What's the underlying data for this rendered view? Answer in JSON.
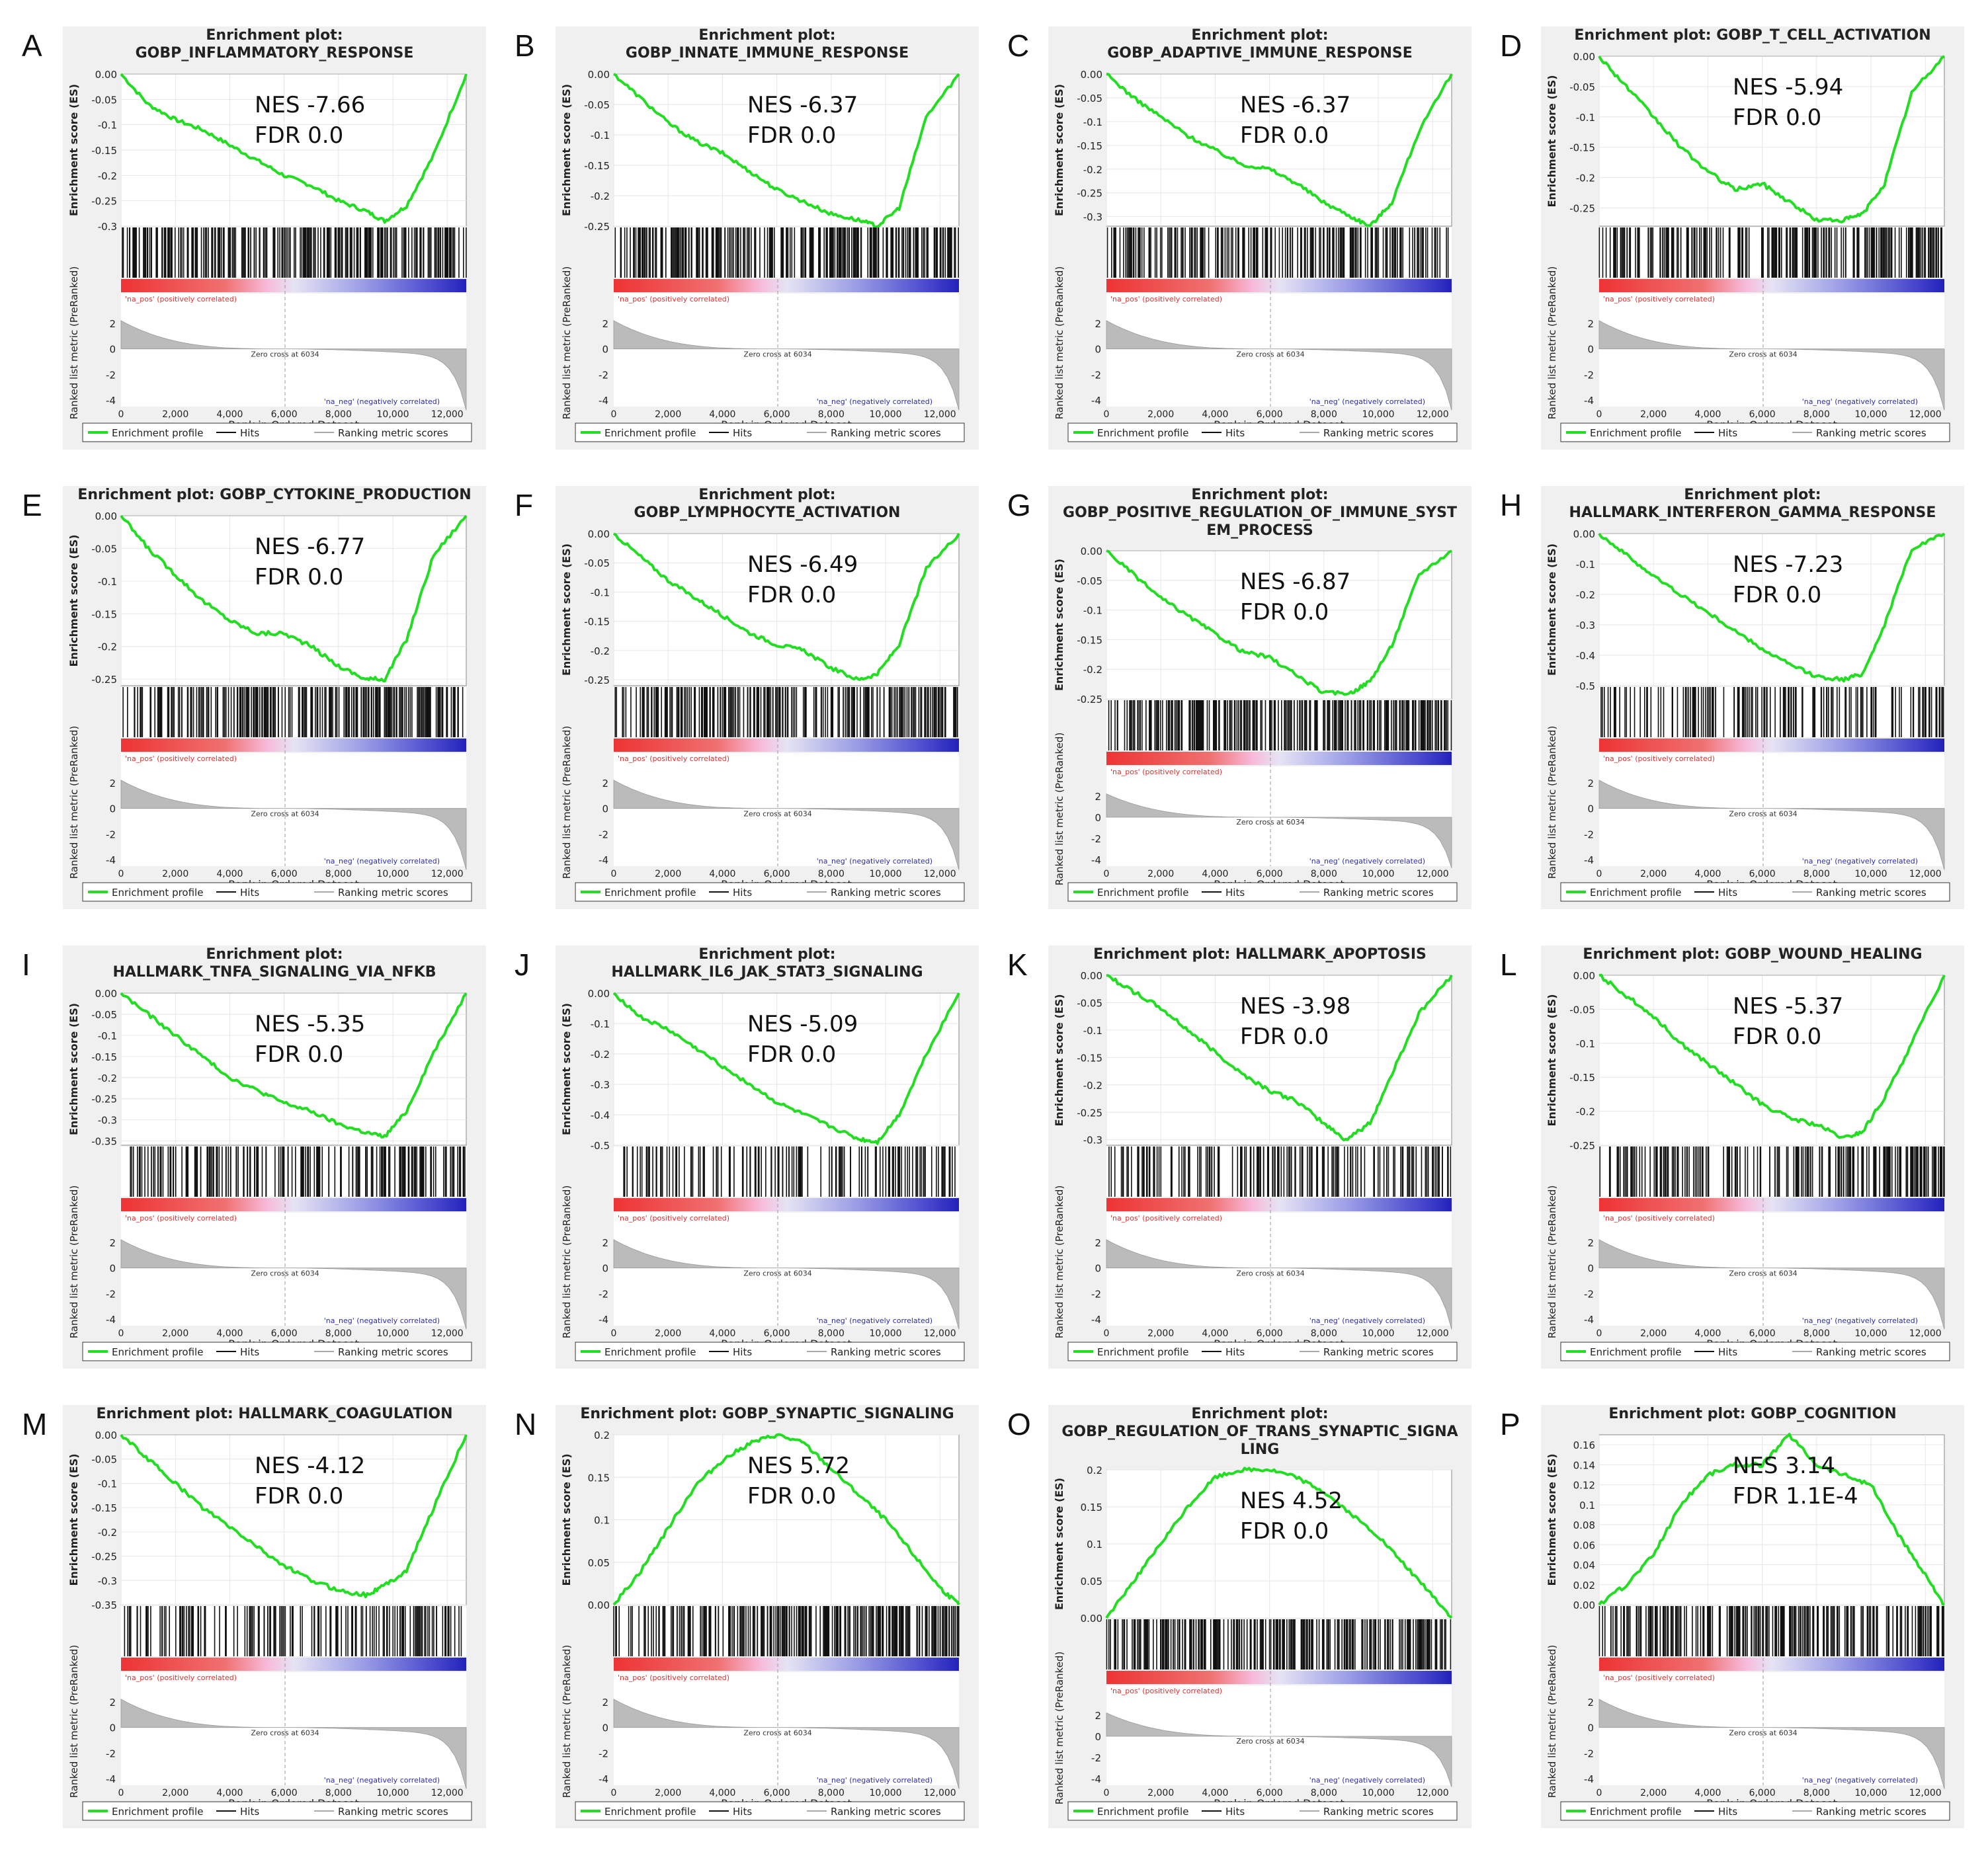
{
  "figure": {
    "panels": [
      {
        "letter": "A",
        "title_lines": [
          "Enrichment plot:",
          "GOBP_INFLAMMATORY_RESPONSE"
        ],
        "nes": "NES -7.66",
        "fdr": "FDR 0.0"
      },
      {
        "letter": "B",
        "title_lines": [
          "Enrichment plot:",
          "GOBP_INNATE_IMMUNE_RESPONSE"
        ],
        "nes": "NES -6.37",
        "fdr": "FDR 0.0"
      },
      {
        "letter": "C",
        "title_lines": [
          "Enrichment plot:",
          "GOBP_ADAPTIVE_IMMUNE_RESPONSE"
        ],
        "nes": "NES -6.37",
        "fdr": "FDR 0.0"
      },
      {
        "letter": "D",
        "title_lines": [
          "Enrichment plot: GOBP_T_CELL_ACTIVATION"
        ],
        "nes": "NES -5.94",
        "fdr": "FDR 0.0"
      },
      {
        "letter": "E",
        "title_lines": [
          "Enrichment plot: GOBP_CYTOKINE_PRODUCTION"
        ],
        "nes": "NES -6.77",
        "fdr": "FDR 0.0"
      },
      {
        "letter": "F",
        "title_lines": [
          "Enrichment plot:",
          "GOBP_LYMPHOCYTE_ACTIVATION"
        ],
        "nes": "NES -6.49",
        "fdr": "FDR 0.0"
      },
      {
        "letter": "G",
        "title_lines": [
          "Enrichment plot:",
          "GOBP_POSITIVE_REGULATION_OF_IMMUNE_SYST",
          "EM_PROCESS"
        ],
        "nes": "NES -6.87",
        "fdr": "FDR 0.0"
      },
      {
        "letter": "H",
        "title_lines": [
          "Enrichment plot:",
          "HALLMARK_INTERFERON_GAMMA_RESPONSE"
        ],
        "nes": "NES -7.23",
        "fdr": "FDR 0.0"
      },
      {
        "letter": "I",
        "title_lines": [
          "Enrichment plot:",
          "HALLMARK_TNFA_SIGNALING_VIA_NFKB"
        ],
        "nes": "NES -5.35",
        "fdr": "FDR 0.0"
      },
      {
        "letter": "J",
        "title_lines": [
          "Enrichment plot:",
          "HALLMARK_IL6_JAK_STAT3_SIGNALING"
        ],
        "nes": "NES -5.09",
        "fdr": "FDR 0.0"
      },
      {
        "letter": "K",
        "title_lines": [
          "Enrichment plot: HALLMARK_APOPTOSIS"
        ],
        "nes": "NES -3.98",
        "fdr": "FDR 0.0"
      },
      {
        "letter": "L",
        "title_lines": [
          "Enrichment plot: GOBP_WOUND_HEALING"
        ],
        "nes": "NES -5.37",
        "fdr": "FDR 0.0"
      },
      {
        "letter": "M",
        "title_lines": [
          "Enrichment plot: HALLMARK_COAGULATION"
        ],
        "nes": "NES -4.12",
        "fdr": "FDR 0.0"
      },
      {
        "letter": "N",
        "title_lines": [
          "Enrichment plot: GOBP_SYNAPTIC_SIGNALING"
        ],
        "nes": "NES 5.72",
        "fdr": "FDR 0.0"
      },
      {
        "letter": "O",
        "title_lines": [
          "Enrichment plot:",
          "GOBP_REGULATION_OF_TRANS_SYNAPTIC_SIGNA",
          "LING"
        ],
        "nes": "NES 4.52",
        "fdr": "FDR 0.0"
      },
      {
        "letter": "P",
        "title_lines": [
          "Enrichment plot: GOBP_COGNITION"
        ],
        "nes": "NES 3.14",
        "fdr": "FDR 1.1E-4"
      }
    ],
    "common_labels": {
      "es_ylabel": "Enrichment score (ES)",
      "metric_ylabel": "Ranked list metric (PreRanked)",
      "xlabel": "Rank in Ordered Dataset",
      "pos_label": "'na_pos' (positively correlated)",
      "neg_label": "'na_neg' (negatively correlated)",
      "zero_cross": "Zero cross at 6034",
      "legend_profile": "Enrichment profile",
      "legend_hits": "Hits",
      "legend_ranking": "Ranking metric scores"
    },
    "colors": {
      "profile": "#22dd22",
      "pos": "#ee3333",
      "neg": "#2222bb",
      "panel_bg": "#f0f0f0",
      "metric_fill": "#bbbbbb"
    }
  },
  "chart_data": [
    {
      "type": "line",
      "panel": "A",
      "title": "Enrichment plot: GOBP_INFLAMMATORY_RESPONSE",
      "ylabel": "Enrichment score (ES)",
      "xlabel": "Rank in Ordered Dataset",
      "x": [
        0,
        1000,
        2000,
        3000,
        4000,
        5000,
        6000,
        7000,
        8000,
        9000,
        9700,
        10500,
        11500,
        12700
      ],
      "y": [
        0,
        -0.06,
        -0.09,
        -0.11,
        -0.14,
        -0.17,
        -0.2,
        -0.22,
        -0.25,
        -0.27,
        -0.29,
        -0.26,
        -0.16,
        0
      ],
      "ylim": [
        -0.3,
        0
      ],
      "yticks": [
        0,
        -0.05,
        -0.1,
        -0.15,
        -0.2,
        -0.25,
        -0.3
      ],
      "xticks": [
        0,
        2000,
        4000,
        6000,
        8000,
        10000,
        12000
      ],
      "hit_density": 0.85
    },
    {
      "type": "line",
      "panel": "B",
      "title": "Enrichment plot: GOBP_INNATE_IMMUNE_RESPONSE",
      "ylabel": "Enrichment score (ES)",
      "xlabel": "Rank in Ordered Dataset",
      "x": [
        0,
        1000,
        2000,
        3000,
        4000,
        5000,
        6000,
        7000,
        8000,
        9000,
        9700,
        10500,
        11500,
        12700
      ],
      "y": [
        0,
        -0.04,
        -0.08,
        -0.11,
        -0.13,
        -0.16,
        -0.19,
        -0.21,
        -0.23,
        -0.24,
        -0.25,
        -0.22,
        -0.07,
        0
      ],
      "ylim": [
        -0.25,
        0
      ],
      "yticks": [
        0,
        -0.05,
        -0.1,
        -0.15,
        -0.2,
        -0.25
      ],
      "xticks": [
        0,
        2000,
        4000,
        6000,
        8000,
        10000,
        12000
      ],
      "hit_density": 0.9
    },
    {
      "type": "line",
      "panel": "C",
      "title": "Enrichment plot: GOBP_ADAPTIVE_IMMUNE_RESPONSE",
      "ylabel": "Enrichment score (ES)",
      "xlabel": "Rank in Ordered Dataset",
      "x": [
        0,
        1000,
        2000,
        3000,
        4000,
        5000,
        6000,
        7000,
        8000,
        9000,
        9700,
        10500,
        11500,
        12700
      ],
      "y": [
        0,
        -0.05,
        -0.09,
        -0.13,
        -0.16,
        -0.19,
        -0.2,
        -0.23,
        -0.27,
        -0.3,
        -0.32,
        -0.27,
        -0.12,
        0
      ],
      "ylim": [
        -0.32,
        0
      ],
      "yticks": [
        0,
        -0.05,
        -0.1,
        -0.15,
        -0.2,
        -0.25,
        -0.3
      ],
      "xticks": [
        0,
        2000,
        4000,
        6000,
        8000,
        10000,
        12000
      ],
      "hit_density": 0.6
    },
    {
      "type": "line",
      "panel": "D",
      "title": "Enrichment plot: GOBP_T_CELL_ACTIVATION",
      "ylabel": "Enrichment score (ES)",
      "xlabel": "Rank in Ordered Dataset",
      "x": [
        0,
        1000,
        2000,
        3000,
        4000,
        5000,
        6000,
        7000,
        8000,
        9000,
        9700,
        10500,
        11500,
        12700
      ],
      "y": [
        0,
        -0.05,
        -0.1,
        -0.15,
        -0.19,
        -0.22,
        -0.21,
        -0.24,
        -0.27,
        -0.27,
        -0.26,
        -0.21,
        -0.06,
        0
      ],
      "ylim": [
        -0.28,
        0
      ],
      "yticks": [
        0,
        -0.05,
        -0.1,
        -0.15,
        -0.2,
        -0.25
      ],
      "xticks": [
        0,
        2000,
        4000,
        6000,
        8000,
        10000,
        12000
      ],
      "hit_density": 0.7
    },
    {
      "type": "line",
      "panel": "E",
      "title": "Enrichment plot: GOBP_CYTOKINE_PRODUCTION",
      "ylabel": "Enrichment score (ES)",
      "xlabel": "Rank in Ordered Dataset",
      "x": [
        0,
        1000,
        2000,
        3000,
        4000,
        5000,
        6000,
        7000,
        8000,
        9000,
        9700,
        10500,
        11500,
        12700
      ],
      "y": [
        0,
        -0.05,
        -0.09,
        -0.13,
        -0.16,
        -0.18,
        -0.18,
        -0.2,
        -0.23,
        -0.25,
        -0.25,
        -0.19,
        -0.06,
        0
      ],
      "ylim": [
        -0.26,
        0
      ],
      "yticks": [
        0,
        -0.05,
        -0.1,
        -0.15,
        -0.2,
        -0.25
      ],
      "xticks": [
        0,
        2000,
        4000,
        6000,
        8000,
        10000,
        12000
      ],
      "hit_density": 0.75
    },
    {
      "type": "line",
      "panel": "F",
      "title": "Enrichment plot: GOBP_LYMPHOCYTE_ACTIVATION",
      "ylabel": "Enrichment score (ES)",
      "xlabel": "Rank in Ordered Dataset",
      "x": [
        0,
        1000,
        2000,
        3000,
        4000,
        5000,
        6000,
        7000,
        8000,
        9000,
        9700,
        10500,
        11500,
        12700
      ],
      "y": [
        0,
        -0.04,
        -0.08,
        -0.11,
        -0.14,
        -0.17,
        -0.19,
        -0.2,
        -0.23,
        -0.25,
        -0.24,
        -0.19,
        -0.06,
        0
      ],
      "ylim": [
        -0.26,
        0
      ],
      "yticks": [
        0,
        -0.05,
        -0.1,
        -0.15,
        -0.2,
        -0.25
      ],
      "xticks": [
        0,
        2000,
        4000,
        6000,
        8000,
        10000,
        12000
      ],
      "hit_density": 0.75
    },
    {
      "type": "line",
      "panel": "G",
      "title": "Enrichment plot: GOBP_POSITIVE_REGULATION_OF_IMMUNE_SYSTEM_PROCESS",
      "ylabel": "Enrichment score (ES)",
      "xlabel": "Rank in Ordered Dataset",
      "x": [
        0,
        1000,
        2000,
        3000,
        4000,
        5000,
        6000,
        7000,
        8000,
        9000,
        9700,
        10500,
        11500,
        12700
      ],
      "y": [
        0,
        -0.04,
        -0.08,
        -0.11,
        -0.14,
        -0.17,
        -0.18,
        -0.21,
        -0.24,
        -0.24,
        -0.22,
        -0.16,
        -0.04,
        0
      ],
      "ylim": [
        -0.25,
        0
      ],
      "yticks": [
        0,
        -0.05,
        -0.1,
        -0.15,
        -0.2,
        -0.25
      ],
      "xticks": [
        0,
        2000,
        4000,
        6000,
        8000,
        10000,
        12000
      ],
      "hit_density": 0.85
    },
    {
      "type": "line",
      "panel": "H",
      "title": "Enrichment plot: HALLMARK_INTERFERON_GAMMA_RESPONSE",
      "ylabel": "Enrichment score (ES)",
      "xlabel": "Rank in Ordered Dataset",
      "x": [
        0,
        1000,
        2000,
        3000,
        4000,
        5000,
        6000,
        7000,
        8000,
        9000,
        9700,
        10500,
        11500,
        12700
      ],
      "y": [
        0,
        -0.07,
        -0.14,
        -0.2,
        -0.26,
        -0.32,
        -0.38,
        -0.43,
        -0.47,
        -0.48,
        -0.46,
        -0.3,
        -0.05,
        0
      ],
      "ylim": [
        -0.5,
        0
      ],
      "yticks": [
        0,
        -0.1,
        -0.2,
        -0.3,
        -0.4,
        -0.5
      ],
      "xticks": [
        0,
        2000,
        4000,
        6000,
        8000,
        10000,
        12000
      ],
      "hit_density": 0.35
    },
    {
      "type": "line",
      "panel": "I",
      "title": "Enrichment plot: HALLMARK_TNFA_SIGNALING_VIA_NFKB",
      "ylabel": "Enrichment score (ES)",
      "xlabel": "Rank in Ordered Dataset",
      "x": [
        0,
        1000,
        2000,
        3000,
        4000,
        5000,
        6000,
        7000,
        8000,
        9000,
        9700,
        10500,
        11500,
        12700
      ],
      "y": [
        0,
        -0.05,
        -0.1,
        -0.15,
        -0.2,
        -0.23,
        -0.26,
        -0.28,
        -0.31,
        -0.33,
        -0.34,
        -0.28,
        -0.14,
        0
      ],
      "ylim": [
        -0.36,
        0
      ],
      "yticks": [
        0,
        -0.05,
        -0.1,
        -0.15,
        -0.2,
        -0.25,
        -0.3,
        -0.35
      ],
      "xticks": [
        0,
        2000,
        4000,
        6000,
        8000,
        10000,
        12000
      ],
      "hit_density": 0.5
    },
    {
      "type": "line",
      "panel": "J",
      "title": "Enrichment plot: HALLMARK_IL6_JAK_STAT3_SIGNALING",
      "ylabel": "Enrichment score (ES)",
      "xlabel": "Rank in Ordered Dataset",
      "x": [
        0,
        1000,
        2000,
        3000,
        4000,
        5000,
        6000,
        7000,
        8000,
        9000,
        9700,
        10500,
        11500,
        12700
      ],
      "y": [
        0,
        -0.08,
        -0.12,
        -0.18,
        -0.24,
        -0.3,
        -0.36,
        -0.4,
        -0.44,
        -0.48,
        -0.49,
        -0.4,
        -0.2,
        0
      ],
      "ylim": [
        -0.5,
        0
      ],
      "yticks": [
        0,
        -0.1,
        -0.2,
        -0.3,
        -0.4,
        -0.5
      ],
      "xticks": [
        0,
        2000,
        4000,
        6000,
        8000,
        10000,
        12000
      ],
      "hit_density": 0.3
    },
    {
      "type": "line",
      "panel": "K",
      "title": "Enrichment plot: HALLMARK_APOPTOSIS",
      "ylabel": "Enrichment score (ES)",
      "xlabel": "Rank in Ordered Dataset",
      "x": [
        0,
        1000,
        2000,
        3000,
        4000,
        5000,
        6000,
        7000,
        8000,
        8800,
        9700,
        10500,
        11500,
        12700
      ],
      "y": [
        0,
        -0.03,
        -0.06,
        -0.1,
        -0.14,
        -0.18,
        -0.21,
        -0.23,
        -0.27,
        -0.3,
        -0.27,
        -0.18,
        -0.07,
        0
      ],
      "ylim": [
        -0.31,
        0
      ],
      "yticks": [
        0,
        -0.05,
        -0.1,
        -0.15,
        -0.2,
        -0.25,
        -0.3
      ],
      "xticks": [
        0,
        2000,
        4000,
        6000,
        8000,
        10000,
        12000
      ],
      "hit_density": 0.4
    },
    {
      "type": "line",
      "panel": "L",
      "title": "Enrichment plot: GOBP_WOUND_HEALING",
      "ylabel": "Enrichment score (ES)",
      "xlabel": "Rank in Ordered Dataset",
      "x": [
        0,
        1000,
        2000,
        3000,
        4000,
        5000,
        6000,
        7000,
        8000,
        9000,
        9700,
        10500,
        11500,
        12700
      ],
      "y": [
        0,
        -0.03,
        -0.06,
        -0.1,
        -0.13,
        -0.16,
        -0.19,
        -0.21,
        -0.22,
        -0.24,
        -0.23,
        -0.18,
        -0.1,
        0
      ],
      "ylim": [
        -0.25,
        0
      ],
      "yticks": [
        0,
        -0.05,
        -0.1,
        -0.15,
        -0.2,
        -0.25
      ],
      "xticks": [
        0,
        2000,
        4000,
        6000,
        8000,
        10000,
        12000
      ],
      "hit_density": 0.6
    },
    {
      "type": "line",
      "panel": "M",
      "title": "Enrichment plot: HALLMARK_COAGULATION",
      "ylabel": "Enrichment score (ES)",
      "xlabel": "Rank in Ordered Dataset",
      "x": [
        0,
        1000,
        2000,
        3000,
        4000,
        5000,
        6000,
        7000,
        8000,
        9000,
        9700,
        10500,
        11500,
        12700
      ],
      "y": [
        0,
        -0.05,
        -0.1,
        -0.15,
        -0.19,
        -0.23,
        -0.27,
        -0.3,
        -0.32,
        -0.33,
        -0.31,
        -0.28,
        -0.15,
        0
      ],
      "ylim": [
        -0.35,
        0
      ],
      "yticks": [
        0,
        -0.05,
        -0.1,
        -0.15,
        -0.2,
        -0.25,
        -0.3,
        -0.35
      ],
      "xticks": [
        0,
        2000,
        4000,
        6000,
        8000,
        10000,
        12000
      ],
      "hit_density": 0.35
    },
    {
      "type": "line",
      "panel": "N",
      "title": "Enrichment plot: GOBP_SYNAPTIC_SIGNALING",
      "ylabel": "Enrichment score (ES)",
      "xlabel": "Rank in Ordered Dataset",
      "x": [
        0,
        1000,
        2000,
        3000,
        4000,
        5000,
        6000,
        7000,
        8000,
        9000,
        10000,
        11000,
        12000,
        12700
      ],
      "y": [
        0,
        0.04,
        0.09,
        0.14,
        0.17,
        0.19,
        0.2,
        0.19,
        0.16,
        0.13,
        0.1,
        0.06,
        0.02,
        0
      ],
      "ylim": [
        0,
        0.2
      ],
      "yticks": [
        0,
        0.05,
        0.1,
        0.15,
        0.2
      ],
      "xticks": [
        0,
        2000,
        4000,
        6000,
        8000,
        10000,
        12000
      ],
      "hit_density": 0.8
    },
    {
      "type": "line",
      "panel": "O",
      "title": "Enrichment plot: GOBP_REGULATION_OF_TRANS_SYNAPTIC_SIGNALING",
      "ylabel": "Enrichment score (ES)",
      "xlabel": "Rank in Ordered Dataset",
      "x": [
        0,
        1000,
        2000,
        3000,
        4000,
        5000,
        6000,
        7000,
        8000,
        9000,
        10000,
        11000,
        12000,
        12700
      ],
      "y": [
        0,
        0.05,
        0.1,
        0.15,
        0.19,
        0.2,
        0.2,
        0.19,
        0.17,
        0.14,
        0.11,
        0.07,
        0.03,
        0
      ],
      "ylim": [
        0,
        0.2
      ],
      "yticks": [
        0,
        0.05,
        0.1,
        0.15,
        0.2
      ],
      "xticks": [
        0,
        2000,
        4000,
        6000,
        8000,
        10000,
        12000
      ],
      "hit_density": 0.8
    },
    {
      "type": "line",
      "panel": "P",
      "title": "Enrichment plot: GOBP_COGNITION",
      "ylabel": "Enrichment score (ES)",
      "xlabel": "Rank in Ordered Dataset",
      "x": [
        0,
        1000,
        2000,
        3000,
        4000,
        5000,
        6000,
        7000,
        8000,
        9000,
        10000,
        11000,
        12000,
        12700
      ],
      "y": [
        0,
        0.02,
        0.05,
        0.1,
        0.13,
        0.14,
        0.14,
        0.17,
        0.14,
        0.13,
        0.12,
        0.07,
        0.03,
        0
      ],
      "ylim": [
        0,
        0.17
      ],
      "yticks": [
        0,
        0.02,
        0.04,
        0.06,
        0.08,
        0.1,
        0.12,
        0.14,
        0.16
      ],
      "xticks": [
        0,
        2000,
        4000,
        6000,
        8000,
        10000,
        12000
      ],
      "hit_density": 0.7
    }
  ]
}
